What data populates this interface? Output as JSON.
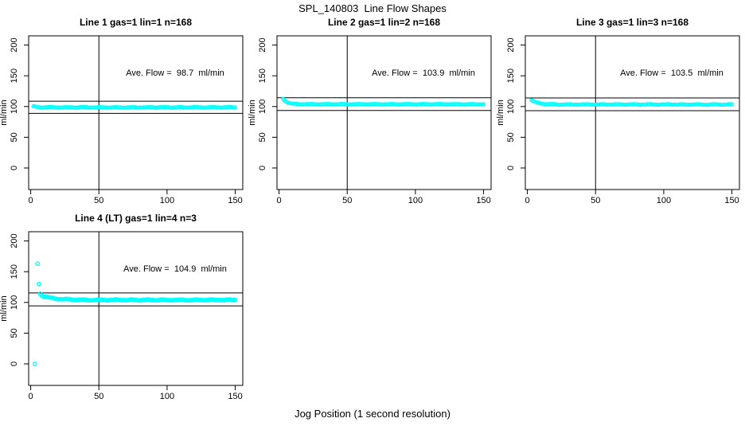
{
  "figure_title": "SPL_140803  Line Flow Shapes",
  "xlabel": "Jog Position (1 second resolution)",
  "colors": {
    "marker": "#00ffff",
    "axis": "#000000",
    "background": "#ffffff"
  },
  "chart_data": [
    {
      "type": "scatter",
      "title": "Line 1 gas=1 lin=1 n=168",
      "ylabel": "ml/min",
      "xticks": [
        0,
        50,
        100,
        150
      ],
      "yticks": [
        0,
        50,
        100,
        150,
        200
      ],
      "xlim": [
        -1.5,
        155.5
      ],
      "ylim": [
        -35,
        215
      ],
      "axis_range_note": "x axis 0-150, y axis 0-200",
      "ave_flow": 98.7,
      "annotation": "Ave. Flow =  98.7  ml/min",
      "ref_line_upper": 108.6,
      "ref_line_lower": 88.8,
      "vline_x": 50,
      "marker_color": "#00ffff",
      "series": {
        "x_start": 2,
        "x_end": 150,
        "start_value": 100.5,
        "settle_value": 98.6,
        "decay_tau": 2,
        "noise": 0.75,
        "marker_radius": 1.9
      },
      "outlier_points": []
    },
    {
      "type": "scatter",
      "title": "Line 2 gas=1 lin=2 n=168",
      "ylabel": "ml/min",
      "xticks": [
        0,
        50,
        100,
        150
      ],
      "yticks": [
        0,
        50,
        100,
        150,
        200
      ],
      "xlim": [
        -1.5,
        155.5
      ],
      "ylim": [
        -35,
        215
      ],
      "axis_range_note": "x axis 0-150, y axis 0-200",
      "ave_flow": 103.9,
      "annotation": "Ave. Flow =  103.9  ml/min",
      "ref_line_upper": 114.3,
      "ref_line_lower": 93.5,
      "vline_x": 50,
      "marker_color": "#00ffff",
      "series": {
        "x_start": 3,
        "x_end": 150,
        "start_value": 112.5,
        "settle_value": 103.7,
        "decay_tau": 3,
        "noise": 0.55,
        "marker_radius": 1.9
      },
      "outlier_points": []
    },
    {
      "type": "scatter",
      "title": "Line 3 gas=1 lin=3 n=168",
      "ylabel": "ml/min",
      "xticks": [
        0,
        50,
        100,
        150
      ],
      "yticks": [
        0,
        50,
        100,
        150,
        200
      ],
      "xlim": [
        -1.5,
        155.5
      ],
      "ylim": [
        -35,
        215
      ],
      "axis_range_note": "x axis 0-150, y axis 0-200",
      "ave_flow": 103.5,
      "annotation": "Ave. Flow =  103.5  ml/min",
      "ref_line_upper": 113.9,
      "ref_line_lower": 93.2,
      "vline_x": 50,
      "marker_color": "#00ffff",
      "series": {
        "x_start": 3,
        "x_end": 150,
        "start_value": 110.5,
        "settle_value": 103.3,
        "decay_tau": 4.5,
        "noise": 0.7,
        "marker_radius": 1.9
      },
      "outlier_points": []
    },
    {
      "type": "scatter",
      "title": "Line 4 (LT) gas=1 lin=4 n=3",
      "ylabel": "ml/min",
      "xticks": [
        0,
        50,
        100,
        150
      ],
      "yticks": [
        0,
        50,
        100,
        150,
        200
      ],
      "xlim": [
        -1.5,
        155.5
      ],
      "ylim": [
        -35,
        215
      ],
      "axis_range_note": "x axis 0-150, y axis 0-200",
      "ave_flow": 104.9,
      "annotation": "Ave. Flow =  104.9  ml/min",
      "ref_line_upper": 115.4,
      "ref_line_lower": 94.4,
      "vline_x": 50,
      "marker_color": "#00ffff",
      "series": {
        "x_start": 8,
        "x_end": 150,
        "start_value": 111.5,
        "settle_value": 104.0,
        "decay_tau": 9,
        "noise": 1.0,
        "marker_radius": 2.2
      },
      "outlier_points": [
        [
          3,
          0
        ],
        [
          5,
          163
        ],
        [
          6,
          130
        ],
        [
          7,
          114
        ]
      ]
    }
  ]
}
